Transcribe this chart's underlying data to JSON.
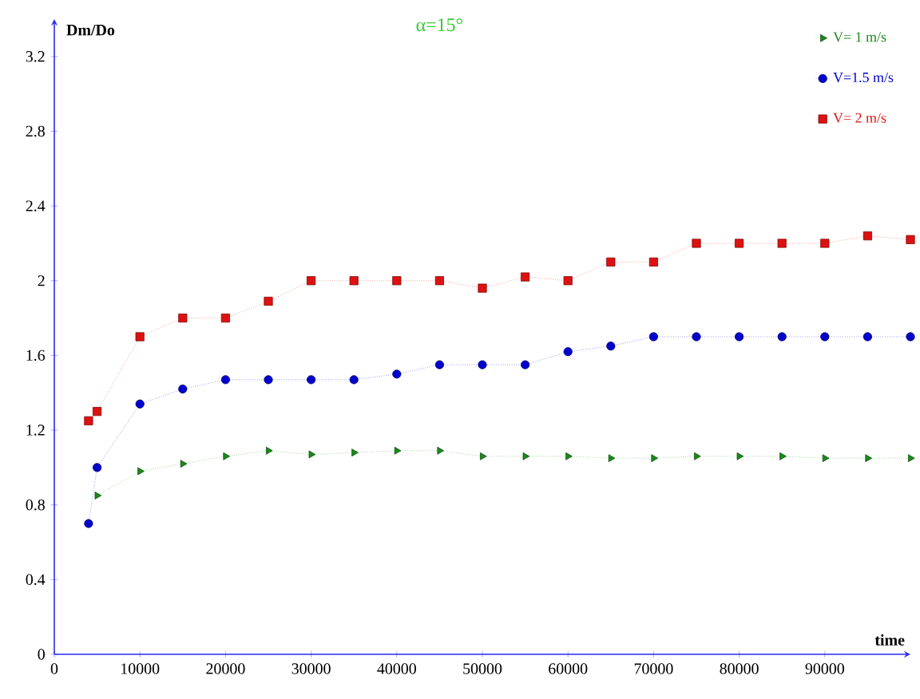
{
  "chart_data": {
    "type": "line",
    "title": "α=15°",
    "xlabel": "time",
    "ylabel": "Dm/Do",
    "xlim": [
      0,
      100000
    ],
    "xticks": [
      0,
      10000,
      20000,
      30000,
      40000,
      50000,
      60000,
      70000,
      80000,
      90000
    ],
    "ylim": [
      0,
      3.4
    ],
    "yticks": [
      0,
      0.4,
      0.8,
      1.2,
      1.6,
      2,
      2.4,
      2.8,
      3.2
    ],
    "grid": false,
    "legend": "top right",
    "line_style": "dotted",
    "series": [
      {
        "name": "V= 1 m/s",
        "color": "#1a8a1a",
        "marker": "triangle",
        "x": [
          5000,
          10000,
          15000,
          20000,
          25000,
          30000,
          35000,
          40000,
          45000,
          50000,
          55000,
          60000,
          65000,
          70000,
          75000,
          80000,
          85000,
          90000,
          95000,
          100000
        ],
        "values": [
          0.85,
          0.98,
          1.02,
          1.06,
          1.09,
          1.07,
          1.08,
          1.09,
          1.09,
          1.06,
          1.06,
          1.06,
          1.05,
          1.05,
          1.06,
          1.06,
          1.06,
          1.05,
          1.05,
          1.05
        ]
      },
      {
        "name": "V=1.5 m/s",
        "color": "#0000cc",
        "marker": "circle",
        "x": [
          4000,
          5000,
          10000,
          15000,
          20000,
          25000,
          30000,
          35000,
          40000,
          45000,
          50000,
          55000,
          60000,
          65000,
          70000,
          75000,
          80000,
          85000,
          90000,
          95000,
          100000
        ],
        "values": [
          0.7,
          1.0,
          1.34,
          1.42,
          1.47,
          1.47,
          1.47,
          1.47,
          1.5,
          1.55,
          1.55,
          1.55,
          1.62,
          1.65,
          1.7,
          1.7,
          1.7,
          1.7,
          1.7,
          1.7,
          1.7
        ]
      },
      {
        "name": "V= 2 m/s",
        "color": "#dd1111",
        "marker": "square",
        "x": [
          4000,
          5000,
          10000,
          15000,
          20000,
          25000,
          30000,
          35000,
          40000,
          45000,
          50000,
          55000,
          60000,
          65000,
          70000,
          75000,
          80000,
          85000,
          90000,
          95000,
          100000
        ],
        "values": [
          1.25,
          1.3,
          1.7,
          1.8,
          1.8,
          1.89,
          2.0,
          2.0,
          2.0,
          2.0,
          1.96,
          2.02,
          2.0,
          2.1,
          2.1,
          2.2,
          2.2,
          2.2,
          2.2,
          2.24,
          2.22
        ]
      }
    ]
  }
}
